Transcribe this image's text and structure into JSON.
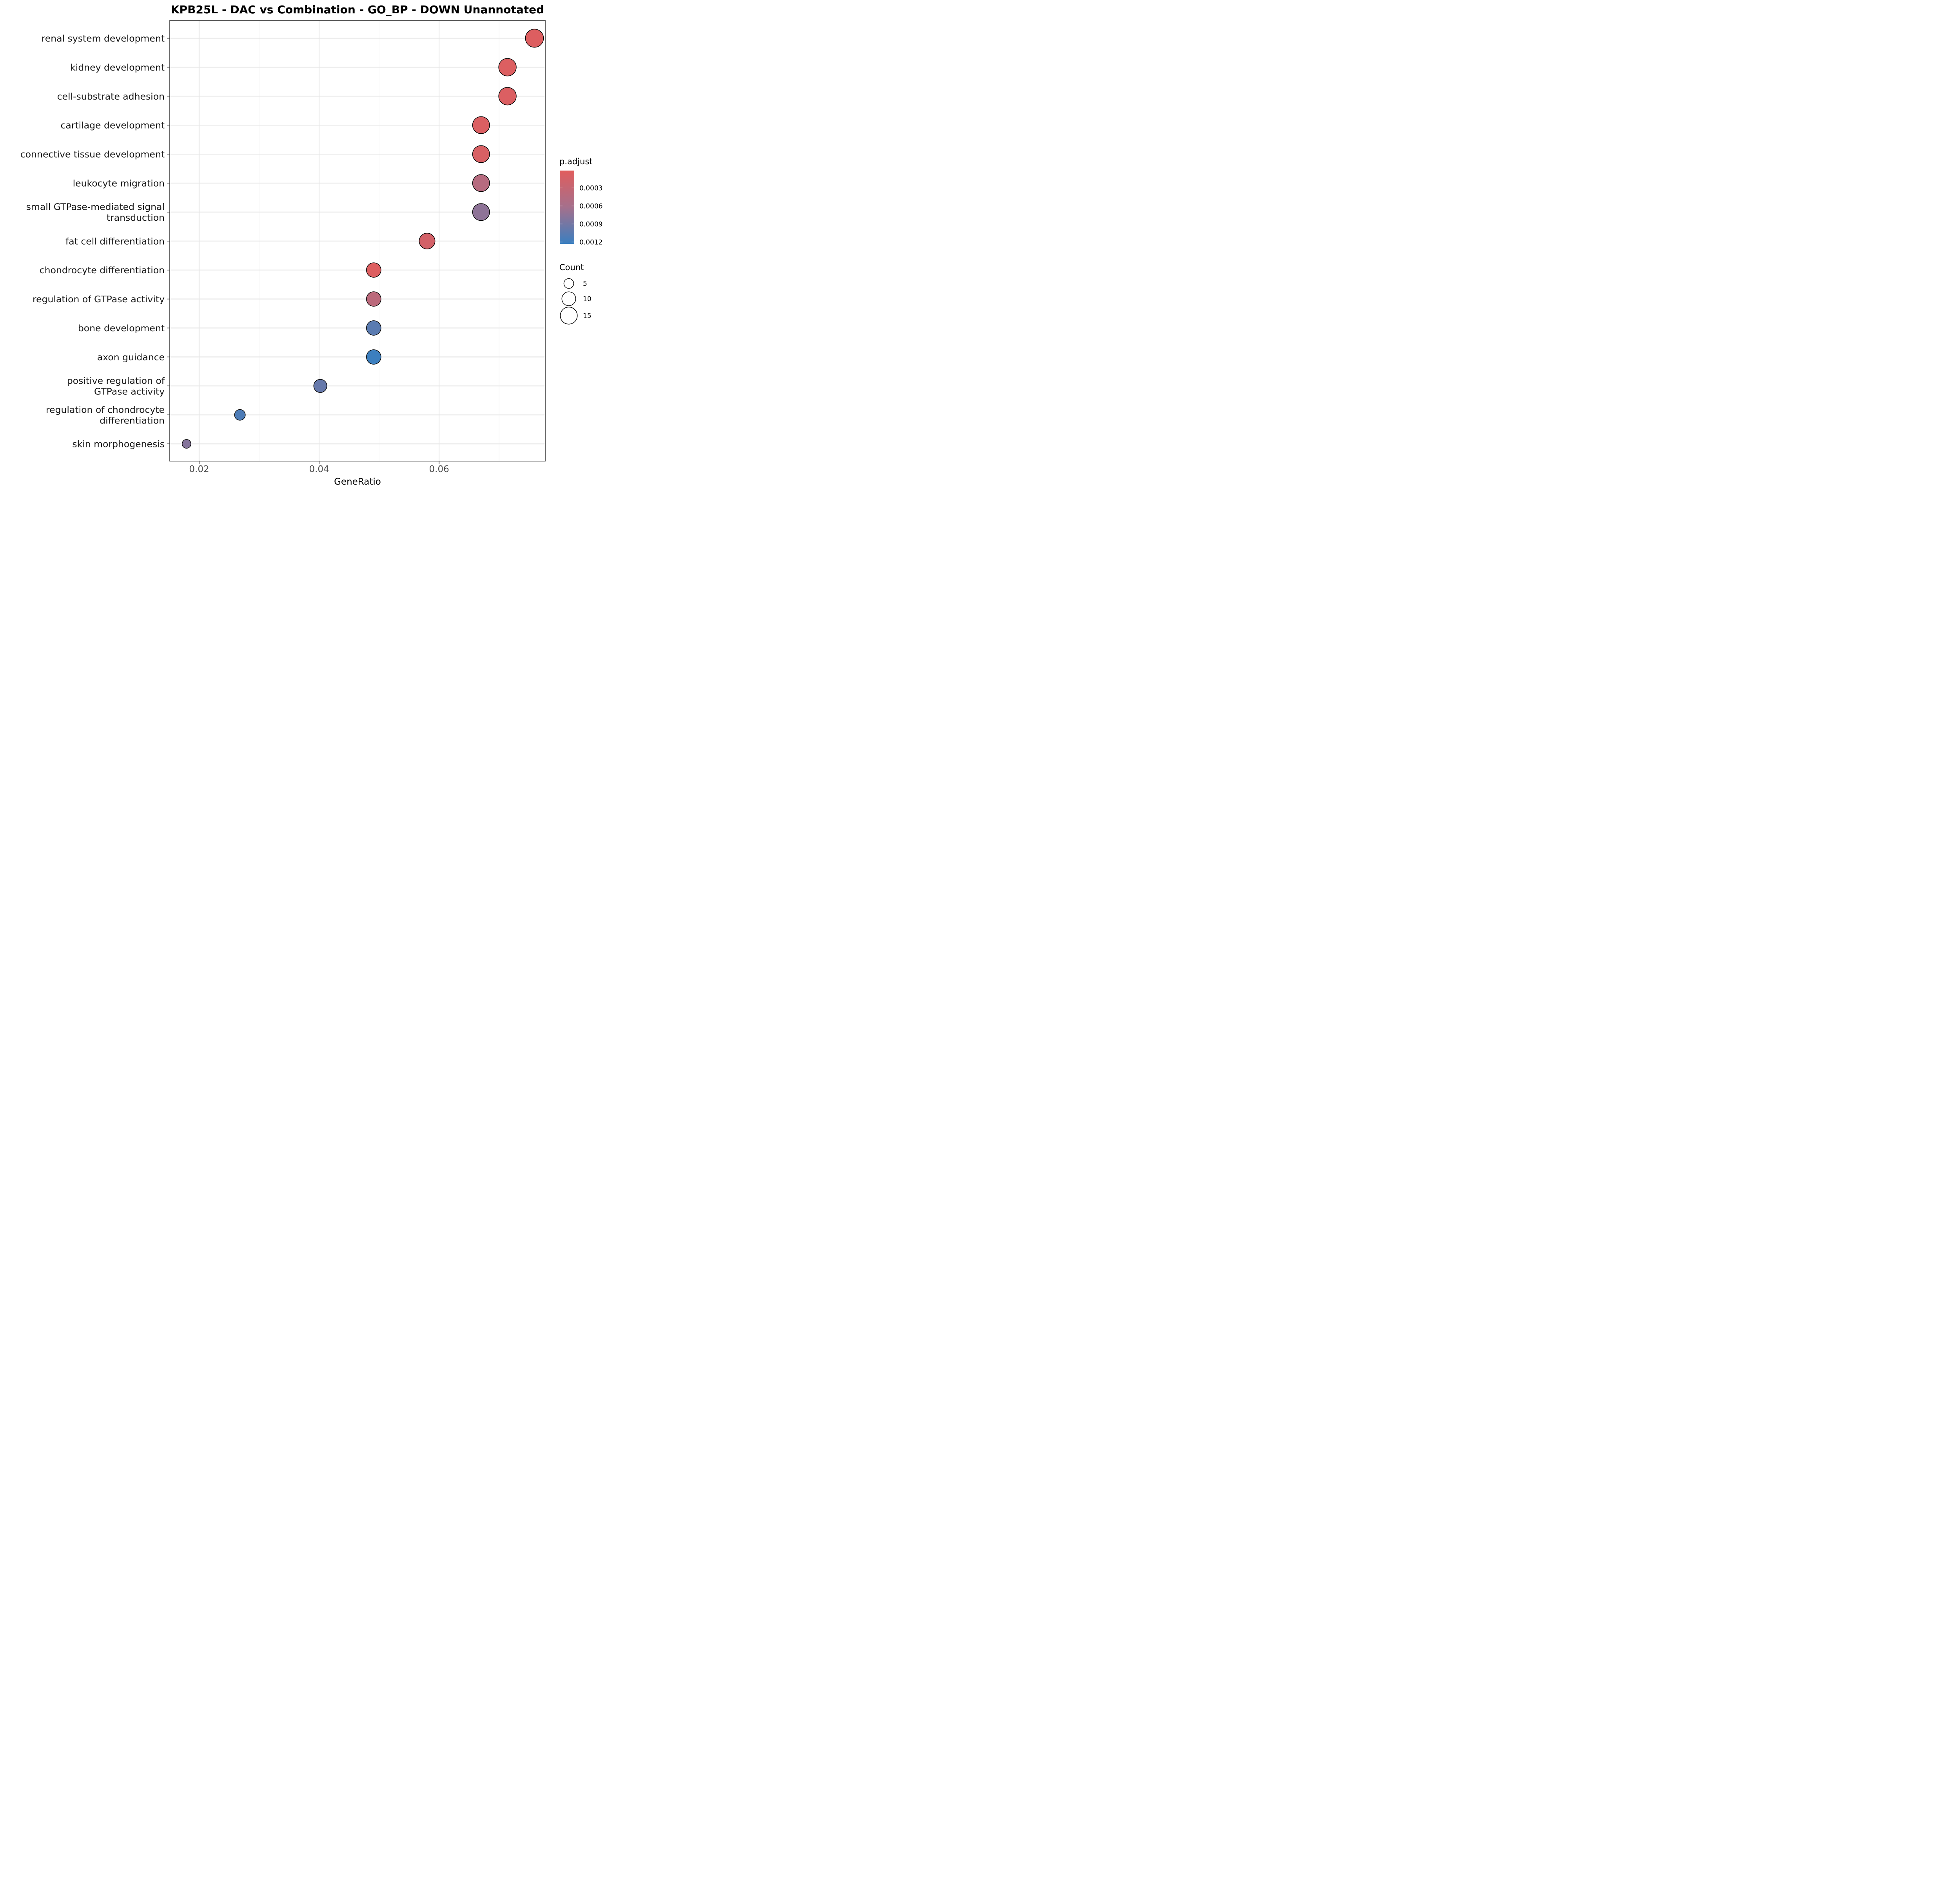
{
  "chart_data": {
    "type": "scatter",
    "title": "KPB25L - DAC vs Combination - GO_BP - DOWN Unannotated",
    "xlabel": "GeneRatio",
    "ylabel": "",
    "xlim": [
      0.0151,
      0.0777
    ],
    "x_ticks": [
      0.02,
      0.04,
      0.06
    ],
    "x_tick_labels": [
      "0.02",
      "0.04",
      "0.06"
    ],
    "grid": true,
    "categories": [
      "renal system development",
      "kidney development",
      "cell-substrate adhesion",
      "cartilage development",
      "connective tissue development",
      "leukocyte migration",
      "small GTPase-mediated signal\ntransduction",
      "fat cell differentiation",
      "chondrocyte differentiation",
      "regulation of GTPase activity",
      "bone development",
      "axon guidance",
      "positive regulation of\nGTPase activity",
      "regulation of chondrocyte\ndifferentiation",
      "skin morphogenesis"
    ],
    "points": [
      {
        "term": "renal system development",
        "gene_ratio": 0.0759,
        "count": 17,
        "p_adjust": 5e-05
      },
      {
        "term": "kidney development",
        "gene_ratio": 0.0714,
        "count": 16,
        "p_adjust": 6e-05
      },
      {
        "term": "cell-substrate adhesion",
        "gene_ratio": 0.0714,
        "count": 16,
        "p_adjust": 7e-05
      },
      {
        "term": "cartilage development",
        "gene_ratio": 0.067,
        "count": 15,
        "p_adjust": 7e-05
      },
      {
        "term": "connective tissue development",
        "gene_ratio": 0.067,
        "count": 15,
        "p_adjust": 0.0001
      },
      {
        "term": "leukocyte migration",
        "gene_ratio": 0.067,
        "count": 15,
        "p_adjust": 0.00045
      },
      {
        "term": "small GTPase-mediated signal\ntransduction",
        "gene_ratio": 0.067,
        "count": 15,
        "p_adjust": 0.00075
      },
      {
        "term": "fat cell differentiation",
        "gene_ratio": 0.058,
        "count": 13,
        "p_adjust": 0.00015
      },
      {
        "term": "chondrocyte differentiation",
        "gene_ratio": 0.0491,
        "count": 11,
        "p_adjust": 5e-05
      },
      {
        "term": "regulation of GTPase activity",
        "gene_ratio": 0.0491,
        "count": 11,
        "p_adjust": 0.0004
      },
      {
        "term": "bone development",
        "gene_ratio": 0.0491,
        "count": 11,
        "p_adjust": 0.00105
      },
      {
        "term": "axon guidance",
        "gene_ratio": 0.0491,
        "count": 11,
        "p_adjust": 0.00122
      },
      {
        "term": "positive regulation of\nGTPase activity",
        "gene_ratio": 0.0402,
        "count": 9,
        "p_adjust": 0.00098
      },
      {
        "term": "regulation of chondrocyte\ndifferentiation",
        "gene_ratio": 0.0268,
        "count": 6,
        "p_adjust": 0.00112
      },
      {
        "term": "skin morphogenesis",
        "gene_ratio": 0.0179,
        "count": 4,
        "p_adjust": 0.0008
      }
    ],
    "color_scale": {
      "title": "p.adjust",
      "min": 1e-05,
      "max": 0.00123,
      "low_color": "#e15d5d",
      "high_color": "#3a7fc0",
      "ticks": [
        0.0003,
        0.0006,
        0.0009,
        0.0012
      ],
      "tick_labels": [
        "0.0003",
        "0.0006",
        "0.0009",
        "0.0012"
      ]
    },
    "size_scale": {
      "title": "Count",
      "values": [
        5,
        10,
        15
      ],
      "labels": [
        "5",
        "10",
        "15"
      ]
    },
    "legend_position": "right"
  }
}
